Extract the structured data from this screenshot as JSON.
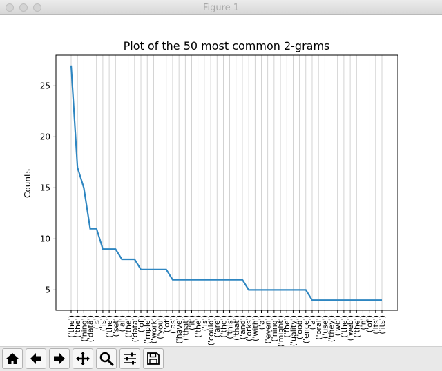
{
  "window": {
    "title": "Figure 1"
  },
  "toolbar": {
    "buttons": [
      {
        "name": "home-icon",
        "tooltip": "Reset original view"
      },
      {
        "name": "back-arrow-icon",
        "tooltip": "Back"
      },
      {
        "name": "forward-arrow-icon",
        "tooltip": "Forward"
      },
      {
        "name": "pan-icon",
        "tooltip": "Pan"
      },
      {
        "name": "zoom-icon",
        "tooltip": "Zoom"
      },
      {
        "name": "configure-subplots-icon",
        "tooltip": "Configure subplots"
      },
      {
        "name": "save-icon",
        "tooltip": "Save"
      }
    ]
  },
  "chart_data": {
    "type": "line",
    "title": "Plot of the 50 most common 2-grams",
    "xlabel": "",
    "ylabel": "Counts",
    "grid": true,
    "color": "#2e86c1",
    "ylim": [
      3,
      28
    ],
    "yticks": [
      5,
      10,
      15,
      20,
      25
    ],
    "categories": [
      "('the')",
      "('the')",
      "('ning')",
      "('data')",
      "('s')",
      "('is')",
      "('the')",
      "('set')",
      "('al')",
      "('the')",
      "('data')",
      "('of')",
      "('mple')",
      "('work')",
      "('you')",
      "('of')",
      "('as')",
      "('have')",
      "('that')",
      "('it')",
      "('the')",
      "('is')",
      "('could')",
      "('are')",
      "('the')",
      "('this')",
      "('that')",
      "('and')",
      "('orks')",
      "('with')",
      "('a')",
      "('even')",
      "('ning')",
      "('might')",
      "('the')",
      "('uality')",
      "('ood')",
      "('ence')",
      "('a')",
      "('oral')",
      "('use')",
      "('they')",
      "('we')",
      "('the')",
      "('web')",
      "('the')",
      "('n')",
      "('of')",
      "('its')",
      "('its')"
    ],
    "values": [
      27,
      17,
      15,
      11,
      11,
      9,
      9,
      9,
      8,
      8,
      8,
      7,
      7,
      7,
      7,
      7,
      6,
      6,
      6,
      6,
      6,
      6,
      6,
      6,
      6,
      6,
      6,
      6,
      5,
      5,
      5,
      5,
      5,
      5,
      5,
      5,
      5,
      5,
      4,
      4,
      4,
      4,
      4,
      4,
      4,
      4,
      4,
      4,
      4,
      4
    ]
  }
}
